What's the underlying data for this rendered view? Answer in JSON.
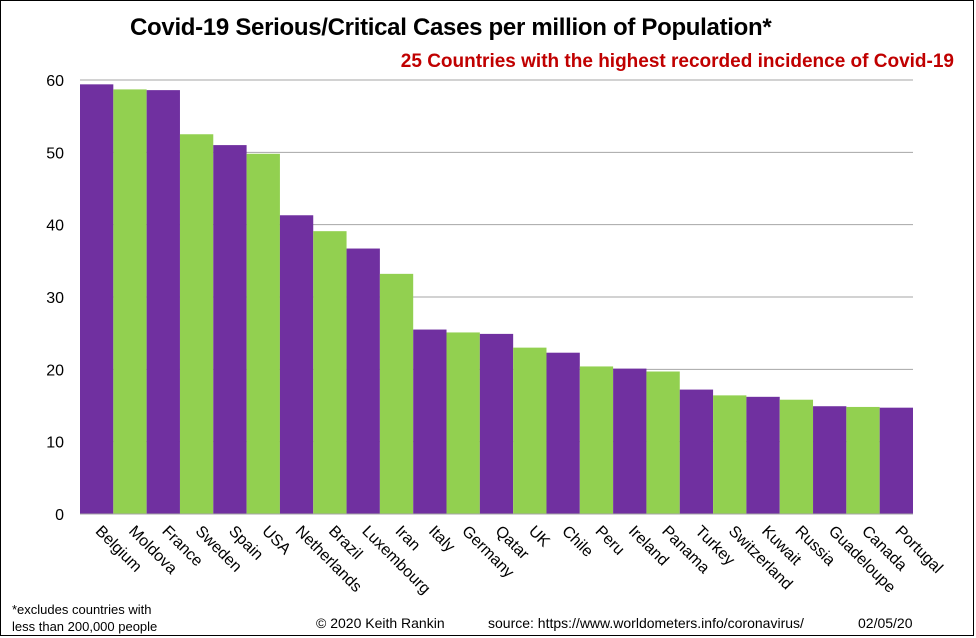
{
  "title": "Covid-19 Serious/Critical Cases per million of Population*",
  "subtitle": "25 Countries with the highest recorded incidence of Covid-19",
  "footnote": {
    "line1": "*excludes countries with",
    "line2": "less than 200,000 people"
  },
  "credit": "© 2020  Keith Rankin",
  "source": "source: https://www.worldometers.info/coronavirus/",
  "date": "02/05/20",
  "colors": {
    "purple": "#7030a0",
    "green": "#92d050",
    "gridline": "#a6a6a6",
    "subtitle": "#c00000"
  },
  "chart_data": {
    "type": "bar",
    "categories": [
      "Belgium",
      "Moldova",
      "France",
      "Sweden",
      "Spain",
      "USA",
      "Netherlands",
      "Brazil",
      "Luxembourg",
      "Iran",
      "Italy",
      "Germany",
      "Qatar",
      "UK",
      "Chile",
      "Peru",
      "Ireland",
      "Panama",
      "Turkey",
      "Switzerland",
      "Kuwait",
      "Russia",
      "Guadeloupe",
      "Canada",
      "Portugal"
    ],
    "values": [
      59.4,
      58.7,
      58.6,
      52.5,
      51.0,
      49.8,
      41.3,
      39.1,
      36.7,
      33.2,
      25.5,
      25.1,
      24.9,
      23.0,
      22.3,
      20.4,
      20.1,
      19.7,
      17.2,
      16.4,
      16.2,
      15.8,
      14.9,
      14.8,
      14.7
    ],
    "bar_colors": [
      "purple",
      "green",
      "purple",
      "green",
      "purple",
      "green",
      "purple",
      "green",
      "purple",
      "green",
      "purple",
      "green",
      "purple",
      "green",
      "purple",
      "green",
      "purple",
      "green",
      "purple",
      "green",
      "purple",
      "green",
      "purple",
      "green",
      "purple"
    ],
    "ylim": [
      0,
      60
    ],
    "yticks": [
      0,
      10,
      20,
      30,
      40,
      50,
      60
    ],
    "xlabel": "",
    "ylabel": "",
    "grid": true,
    "legend": "none"
  }
}
